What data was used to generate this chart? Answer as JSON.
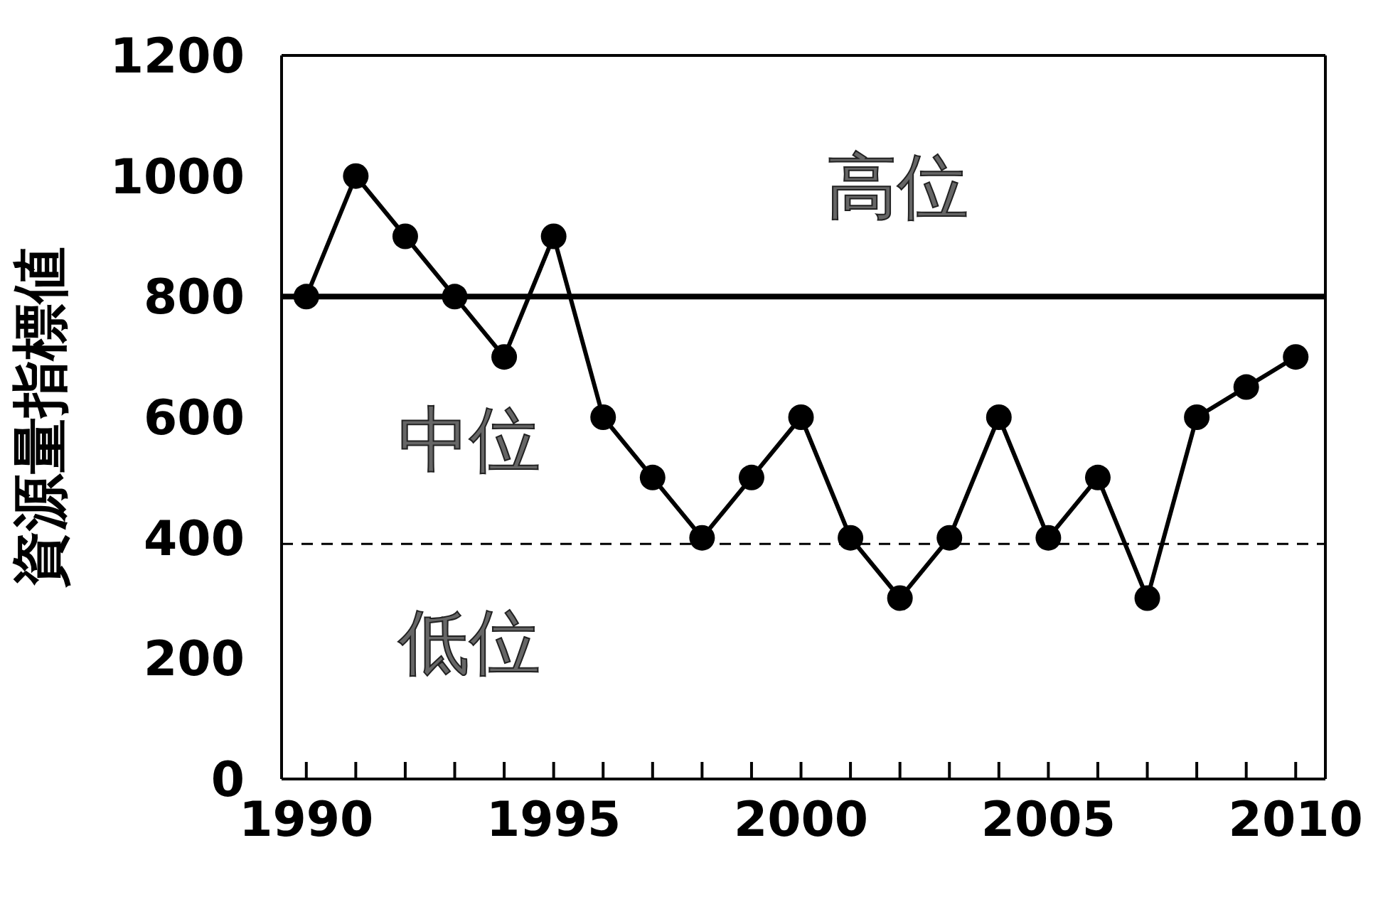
{
  "chart_data": {
    "type": "line",
    "ylabel": "資源量指標値",
    "x": [
      1990,
      1991,
      1992,
      1993,
      1994,
      1995,
      1996,
      1997,
      1998,
      1999,
      2000,
      2001,
      2002,
      2003,
      2004,
      2005,
      2006,
      2007,
      2008,
      2009,
      2010
    ],
    "series": [
      {
        "color": "#000000",
        "values": [
          800,
          1000,
          900,
          800,
          700,
          900,
          600,
          500,
          400,
          500,
          600,
          400,
          300,
          400,
          600,
          400,
          500,
          300,
          600,
          650,
          700
        ]
      }
    ],
    "xlim": [
      1989.5,
      2010.6
    ],
    "xticks": [
      1990,
      {
        "value": 1991,
        "label": null
      },
      {
        "value": 1992,
        "label": null
      },
      {
        "value": 1993,
        "label": null
      },
      {
        "value": 1994,
        "label": null
      },
      1995,
      {
        "value": 1996,
        "label": null
      },
      {
        "value": 1997,
        "label": null
      },
      {
        "value": 1998,
        "label": null
      },
      {
        "value": 1999,
        "label": null
      },
      2000,
      {
        "value": 2001,
        "label": null
      },
      {
        "value": 2002,
        "label": null
      },
      {
        "value": 2003,
        "label": null
      },
      {
        "value": 2004,
        "label": null
      },
      2005,
      {
        "value": 2006,
        "label": null
      },
      {
        "value": 2007,
        "label": null
      },
      {
        "value": 2008,
        "label": null
      },
      {
        "value": 2009,
        "label": null
      },
      2010
    ],
    "ylim": [
      0,
      1200
    ],
    "yticks": [
      0,
      200,
      400,
      600,
      800,
      1000,
      1200
    ],
    "ref_lines": [
      {
        "axis": "y",
        "value": 800,
        "line_style": "solid",
        "color": "#000000"
      },
      {
        "axis": "y",
        "value": 390,
        "line_style": "dashed",
        "color": "#000000"
      }
    ],
    "annotations": [
      "高位",
      "中位",
      "低位"
    ],
    "marker": "circle",
    "line_style": "solid",
    "grid": false,
    "legend": false
  }
}
